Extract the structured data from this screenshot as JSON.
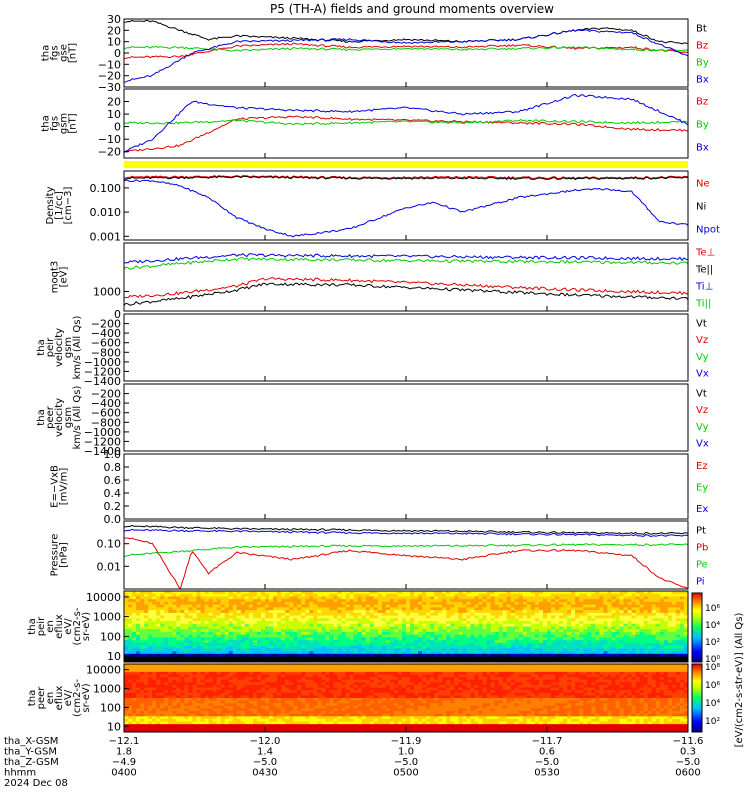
{
  "title": "P5 (TH-A) fields and ground moments overview",
  "date": "2024 Dec 08",
  "colors": {
    "black": "#000000",
    "red": "#e00000",
    "green": "#00cc00",
    "blue": "#0000e0",
    "yellow": "#ffff00"
  },
  "chart_data": [
    {
      "id": "fgs_gse",
      "type": "line",
      "ylabel": [
        "tha",
        "fgs",
        "gse",
        "[nT]"
      ],
      "ylim": [
        -30,
        30
      ],
      "ticks": [
        "30",
        "20",
        "10",
        "0",
        "−10",
        "−20",
        "−30"
      ],
      "legend": [
        {
          "name": "Bt",
          "color": "black"
        },
        {
          "name": "Bz",
          "color": "red"
        },
        {
          "name": "By",
          "color": "green"
        },
        {
          "name": "Bx",
          "color": "blue"
        }
      ],
      "series": [
        {
          "name": "Bt",
          "color": "black",
          "x": [
            0,
            0.05,
            0.1,
            0.15,
            0.2,
            0.3,
            0.4,
            0.5,
            0.6,
            0.7,
            0.8,
            0.85,
            0.9,
            0.95,
            1
          ],
          "y": [
            28,
            28,
            20,
            12,
            15,
            13,
            10,
            12,
            10,
            12,
            20,
            22,
            20,
            10,
            8
          ]
        },
        {
          "name": "Bz",
          "color": "red",
          "x": [
            0,
            0.1,
            0.2,
            0.3,
            0.4,
            0.5,
            0.6,
            0.7,
            0.8,
            0.9,
            1
          ],
          "y": [
            -4,
            -3,
            6,
            8,
            5,
            6,
            5,
            7,
            4,
            5,
            0
          ]
        },
        {
          "name": "By",
          "color": "green",
          "x": [
            0,
            0.1,
            0.2,
            0.3,
            0.4,
            0.5,
            0.6,
            0.7,
            0.8,
            0.9,
            1
          ],
          "y": [
            5,
            5,
            2,
            4,
            3,
            4,
            3,
            4,
            5,
            3,
            2
          ]
        },
        {
          "name": "Bx",
          "color": "blue",
          "x": [
            0,
            0.05,
            0.12,
            0.2,
            0.3,
            0.4,
            0.5,
            0.6,
            0.7,
            0.8,
            0.9,
            1
          ],
          "y": [
            -25,
            -20,
            0,
            10,
            11,
            12,
            9,
            10,
            12,
            20,
            18,
            -3
          ]
        }
      ]
    },
    {
      "id": "fgs_gsm",
      "type": "line",
      "ylabel": [
        "tha",
        "fgs",
        "gsm",
        "[nT]"
      ],
      "ylim": [
        -25,
        30
      ],
      "ticks": [
        "20",
        "10",
        "0",
        "−10",
        "−20"
      ],
      "legend": [
        {
          "name": "Bz",
          "color": "red"
        },
        {
          "name": "By",
          "color": "green"
        },
        {
          "name": "Bx",
          "color": "blue"
        }
      ],
      "series": [
        {
          "name": "Bz",
          "color": "red",
          "x": [
            0,
            0.1,
            0.2,
            0.3,
            0.4,
            0.5,
            0.6,
            0.7,
            0.8,
            0.9,
            1
          ],
          "y": [
            -20,
            -15,
            6,
            8,
            6,
            5,
            4,
            3,
            2,
            -2,
            -3
          ]
        },
        {
          "name": "By",
          "color": "green",
          "x": [
            0,
            0.1,
            0.2,
            0.3,
            0.4,
            0.5,
            0.6,
            0.7,
            0.8,
            0.9,
            1
          ],
          "y": [
            3,
            3,
            5,
            2,
            3,
            4,
            3,
            5,
            4,
            3,
            4
          ]
        },
        {
          "name": "Bx",
          "color": "blue",
          "x": [
            0,
            0.05,
            0.12,
            0.2,
            0.3,
            0.4,
            0.5,
            0.6,
            0.7,
            0.8,
            0.9,
            1
          ],
          "y": [
            -20,
            -10,
            20,
            15,
            13,
            12,
            15,
            10,
            12,
            25,
            22,
            2
          ]
        }
      ]
    },
    {
      "id": "density",
      "type": "line",
      "log": true,
      "ylabel": [
        "Density",
        "[1/cc]",
        "[cm−3]"
      ],
      "ylim": [
        0.0007,
        0.5
      ],
      "ticks": [
        "0.100",
        "0.010",
        "0.001"
      ],
      "legend": [
        {
          "name": "Ne",
          "color": "red"
        },
        {
          "name": "Ni",
          "color": "black"
        },
        {
          "name": "Npot",
          "color": "blue"
        }
      ],
      "series": [
        {
          "name": "Ne",
          "color": "red",
          "x": [
            0,
            0.2,
            0.4,
            0.6,
            0.8,
            1
          ],
          "y": [
            0.28,
            0.3,
            0.27,
            0.28,
            0.26,
            0.28
          ]
        },
        {
          "name": "Ni",
          "color": "black",
          "x": [
            0,
            0.2,
            0.4,
            0.6,
            0.8,
            1
          ],
          "y": [
            0.25,
            0.28,
            0.25,
            0.25,
            0.24,
            0.26
          ]
        },
        {
          "name": "Npot",
          "color": "blue",
          "x": [
            0,
            0.05,
            0.1,
            0.15,
            0.2,
            0.25,
            0.3,
            0.4,
            0.5,
            0.55,
            0.6,
            0.7,
            0.8,
            0.85,
            0.9,
            0.95,
            1
          ],
          "y": [
            0.2,
            0.2,
            0.12,
            0.04,
            0.006,
            0.002,
            0.001,
            0.002,
            0.015,
            0.025,
            0.01,
            0.04,
            0.08,
            0.09,
            0.07,
            0.004,
            0.003
          ]
        }
      ]
    },
    {
      "id": "temperature",
      "type": "line",
      "log": true,
      "ylabel": [
        "moqt3",
        "[eV]"
      ],
      "ylim": [
        300,
        20000
      ],
      "ticks": [
        "1000"
      ],
      "legend": [
        {
          "name": "Te⊥",
          "color": "red"
        },
        {
          "name": "Te||",
          "color": "black"
        },
        {
          "name": "Ti⊥",
          "color": "blue"
        },
        {
          "name": "Ti||",
          "color": "green"
        }
      ],
      "series": [
        {
          "name": "Ti⊥",
          "color": "blue",
          "x": [
            0,
            0.2,
            0.4,
            0.6,
            0.8,
            1
          ],
          "y": [
            6000,
            9500,
            9000,
            8500,
            8000,
            7500
          ]
        },
        {
          "name": "Ti||",
          "color": "green",
          "x": [
            0,
            0.2,
            0.4,
            0.6,
            0.8,
            1
          ],
          "y": [
            4200,
            7500,
            7000,
            6500,
            6200,
            5800
          ]
        },
        {
          "name": "Te⊥",
          "color": "red",
          "x": [
            0,
            0.1,
            0.2,
            0.25,
            0.4,
            0.6,
            0.8,
            1
          ],
          "y": [
            700,
            900,
            1400,
            2200,
            2000,
            1500,
            1100,
            900
          ]
        },
        {
          "name": "Te||",
          "color": "black",
          "x": [
            0,
            0.1,
            0.2,
            0.25,
            0.4,
            0.6,
            0.8,
            1
          ],
          "y": [
            450,
            650,
            1100,
            1600,
            1500,
            1100,
            800,
            650
          ]
        }
      ]
    },
    {
      "id": "peir_vel",
      "type": "line",
      "ylabel": [
        "tha",
        "peir",
        "velocity",
        "gsm",
        "km/s (All Qs)"
      ],
      "ylim": [
        -1400,
        0
      ],
      "ticks": [
        "0",
        "−200",
        "−400",
        "−600",
        "−800",
        "−1000",
        "−1200",
        "−1400"
      ],
      "legend": [
        {
          "name": "Vt",
          "color": "black"
        },
        {
          "name": "Vz",
          "color": "red"
        },
        {
          "name": "Vy",
          "color": "green"
        },
        {
          "name": "Vx",
          "color": "blue"
        }
      ],
      "series": []
    },
    {
      "id": "peer_vel",
      "type": "line",
      "ylabel": [
        "tha",
        "peer",
        "velocity",
        "gsm",
        "km/s (All Qs)"
      ],
      "ylim": [
        -1400,
        0
      ],
      "ticks": [
        "−200",
        "−400",
        "−600",
        "−800",
        "−1000",
        "−1200",
        "−1400"
      ],
      "legend": [
        {
          "name": "Vt",
          "color": "black"
        },
        {
          "name": "Vz",
          "color": "red"
        },
        {
          "name": "Vy",
          "color": "green"
        },
        {
          "name": "Vx",
          "color": "blue"
        }
      ],
      "series": []
    },
    {
      "id": "efield",
      "type": "line",
      "ylabel": [
        "E=−VxB",
        "[mV/m]"
      ],
      "ylim": [
        0,
        1
      ],
      "ticks": [
        "1.0",
        "0.8",
        "0.6",
        "0.4",
        "0.2",
        "0.0"
      ],
      "legend": [
        {
          "name": "Ez",
          "color": "red"
        },
        {
          "name": "Ey",
          "color": "green"
        },
        {
          "name": "Ex",
          "color": "blue"
        }
      ],
      "series": []
    },
    {
      "id": "pressure",
      "type": "line",
      "log": true,
      "ylabel": [
        "Pressure",
        "[nPa]"
      ],
      "ylim": [
        0.001,
        1
      ],
      "ticks": [
        "0.10",
        "0.01"
      ],
      "legend": [
        {
          "name": "Pt",
          "color": "black"
        },
        {
          "name": "Pb",
          "color": "red"
        },
        {
          "name": "Pe",
          "color": "green"
        },
        {
          "name": "Pi",
          "color": "blue"
        }
      ],
      "series": [
        {
          "name": "Pt",
          "color": "black",
          "x": [
            0,
            0.2,
            0.4,
            0.6,
            0.8,
            1
          ],
          "y": [
            0.6,
            0.45,
            0.4,
            0.35,
            0.3,
            0.28
          ]
        },
        {
          "name": "Pi",
          "color": "blue",
          "x": [
            0,
            0.2,
            0.4,
            0.6,
            0.8,
            1
          ],
          "y": [
            0.4,
            0.35,
            0.3,
            0.28,
            0.25,
            0.22
          ]
        },
        {
          "name": "Pe",
          "color": "green",
          "x": [
            0,
            0.2,
            0.4,
            0.6,
            0.8,
            1
          ],
          "y": [
            0.03,
            0.07,
            0.08,
            0.08,
            0.09,
            0.09
          ]
        },
        {
          "name": "Pb",
          "color": "red",
          "x": [
            0,
            0.05,
            0.1,
            0.12,
            0.15,
            0.2,
            0.3,
            0.4,
            0.5,
            0.6,
            0.7,
            0.8,
            0.9,
            0.95,
            1
          ],
          "y": [
            0.2,
            0.1,
            0.001,
            0.05,
            0.005,
            0.04,
            0.02,
            0.05,
            0.03,
            0.02,
            0.05,
            0.05,
            0.03,
            0.003,
            0.001
          ]
        }
      ]
    },
    {
      "id": "peir_en",
      "type": "heatmap",
      "log": true,
      "ylabel": [
        "tha",
        "peir",
        "en",
        "eflux",
        "eV/",
        "(cm2-s-",
        "sr-eV)"
      ],
      "ylim": [
        5,
        20000
      ],
      "ticks": [
        "10000",
        "1000",
        "100",
        "10"
      ]
    },
    {
      "id": "peer_en",
      "type": "heatmap",
      "log": true,
      "ylabel": [
        "tha",
        "peer",
        "en",
        "eflux",
        "eV/",
        "(cm2-s-",
        "sr-eV)"
      ],
      "ylim": [
        5,
        20000
      ],
      "ticks": [
        "10000",
        "1000",
        "100",
        "10"
      ]
    }
  ],
  "colorbar": {
    "label": "[eV/(cm2-s-str-eV)] (All Qs)",
    "upper_ticks": [
      "10⁶",
      "10⁴",
      "10²",
      "10⁰"
    ],
    "lower_ticks": [
      "10⁸",
      "10⁶",
      "10⁴",
      "10²"
    ]
  },
  "xaxis": {
    "row_labels": [
      "tha_X-GSM",
      "tha_Y-GSM",
      "tha_Z-GSM",
      "hhmm",
      "2024 Dec 08"
    ],
    "columns": [
      {
        "values": [
          "−12.1",
          "1.8",
          "−4.9",
          "0400"
        ]
      },
      {
        "values": [
          "−12.0",
          "1.4",
          "−5.0",
          "0430"
        ]
      },
      {
        "values": [
          "−11.9",
          "1.0",
          "−5.0",
          "0500"
        ]
      },
      {
        "values": [
          "−11.7",
          "0.6",
          "−5.0",
          "0530"
        ]
      },
      {
        "values": [
          "−11.6",
          "0.3",
          "−5.0",
          "0600"
        ]
      }
    ]
  }
}
